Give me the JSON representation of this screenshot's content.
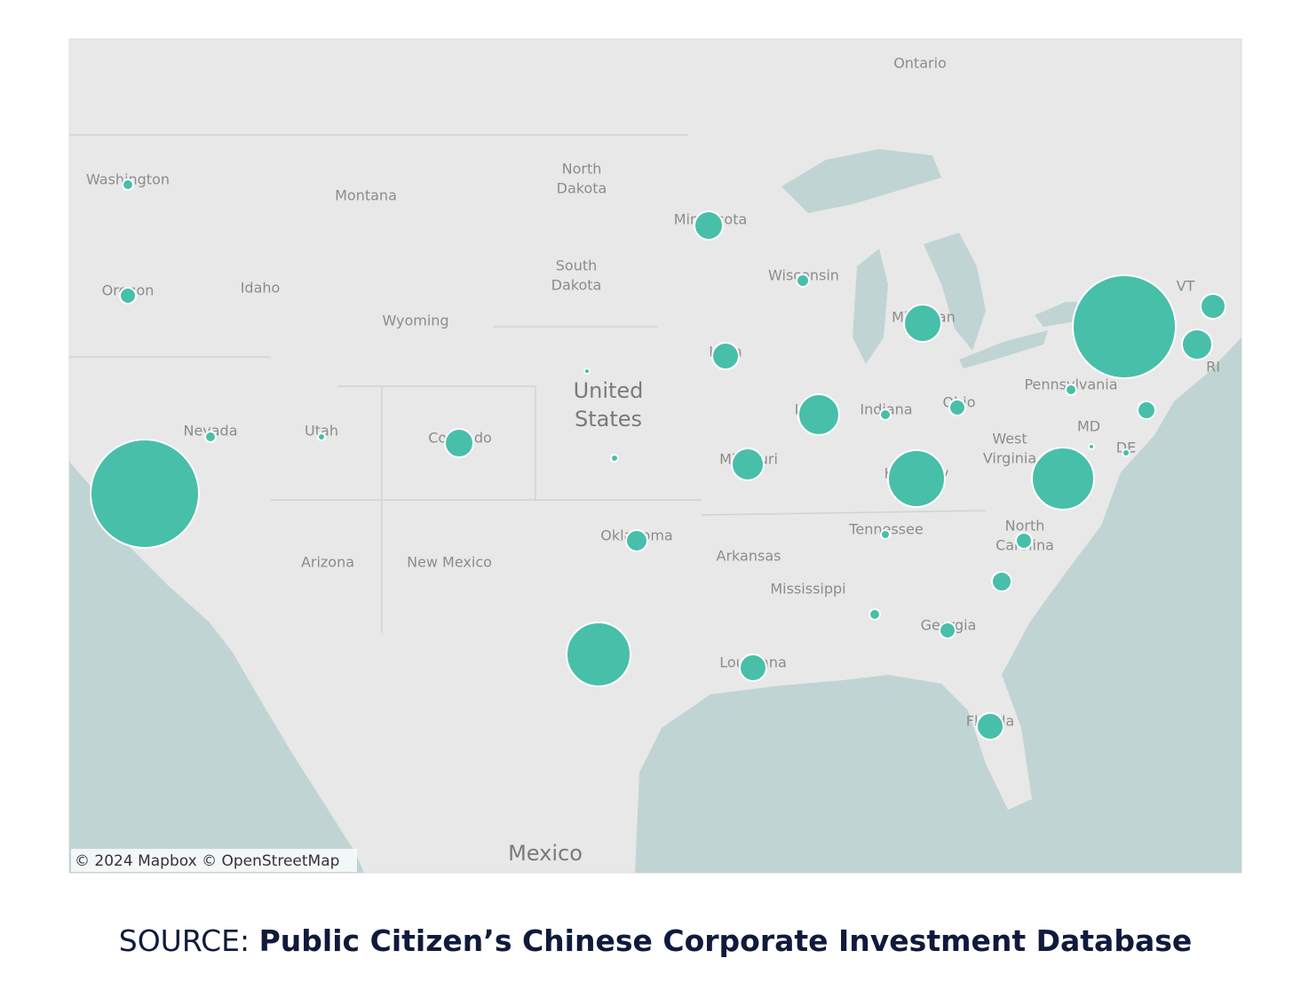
{
  "map": {
    "labels": [
      [
        "Ontario"
      ],
      [
        "Washington"
      ],
      [
        "Montana"
      ],
      [
        "North",
        "Dakota"
      ],
      [
        "Minnesota"
      ],
      [
        "South",
        "Dakota"
      ],
      [
        "Wisconsin"
      ],
      [
        "Idaho"
      ],
      [
        "Oregon"
      ],
      [
        "Wyoming"
      ],
      [
        "Michigan"
      ],
      [
        "VT"
      ],
      [
        "Pennsylvania"
      ],
      [
        "Indiana"
      ],
      [
        "Ohio"
      ],
      [
        "Nevada"
      ],
      [
        "Utah"
      ],
      [
        "Colorado"
      ],
      [
        "Missouri"
      ],
      [
        "West",
        "Virginia"
      ],
      [
        "MD"
      ],
      [
        "DE"
      ],
      [
        "RI"
      ],
      [
        "Illinois"
      ],
      [
        "Iowa"
      ],
      [
        "Kentucky"
      ],
      [
        "Tennessee"
      ],
      [
        "North",
        "Carolina"
      ],
      [
        "Oklahoma"
      ],
      [
        "Arkansas"
      ],
      [
        "Arizona"
      ],
      [
        "New Mexico"
      ],
      [
        "Mississippi"
      ],
      [
        "Georgia"
      ],
      [
        "Louisiana"
      ],
      [
        "Florida"
      ],
      [
        "Mexico"
      ]
    ],
    "country_label": [
      "United",
      "States"
    ],
    "attribution": "© 2024 Mapbox  © OpenStreetMap",
    "bubble_color": "#48bfa9",
    "bubbles": [
      36,
      81,
      3721,
      36,
      16,
      256,
      9,
      16,
      256,
      49,
      225,
      529,
      324,
      441,
      36,
      81,
      1024,
      1225,
      3364,
      196,
      289,
      36,
      100,
      9,
      16,
      144,
      1296,
      25,
      81,
      121,
      36,
      81,
      225,
      225
    ]
  },
  "source": {
    "prefix": "SOURCE:",
    "title": "Public Citizen’s Chinese Corporate Investment Database"
  }
}
